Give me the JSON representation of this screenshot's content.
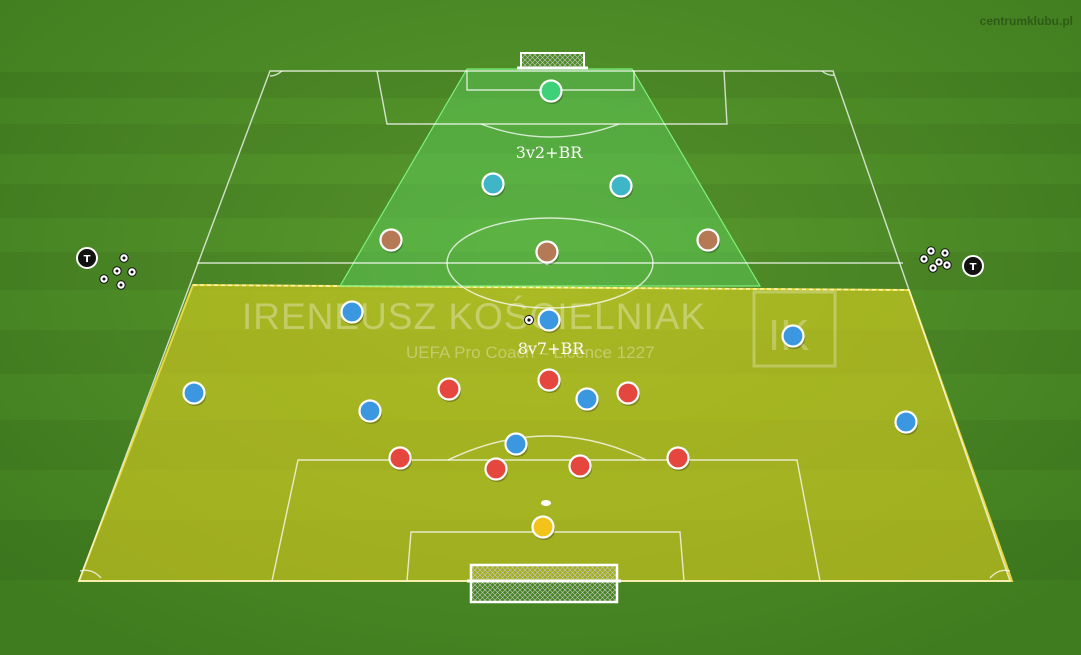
{
  "site": "centrumklubu.pl",
  "watermark": {
    "name": "IRENEUSZ KOŚCIELNIAK",
    "subtitle": "UEFA Pro Coach – Licence 1227",
    "monogram": "IK"
  },
  "zones": {
    "upper": {
      "label": "3v2+BR",
      "color": "#5fd35f"
    },
    "lower": {
      "label": "8v7+BR",
      "color": "#e3d21f"
    }
  },
  "colors": {
    "blue": "#3b97e0",
    "red": "#e5473e",
    "brown": "#b57a55",
    "teal": "#3fb6c8",
    "green_gk": "#3fd07a",
    "yellow_gk": "#f2c41a"
  },
  "players": [
    {
      "team": "green_gk",
      "role": "goalkeeper"
    },
    {
      "team": "teal",
      "role": "player"
    },
    {
      "team": "teal",
      "role": "player"
    },
    {
      "team": "brown",
      "role": "player"
    },
    {
      "team": "brown",
      "role": "player"
    },
    {
      "team": "brown",
      "role": "player"
    },
    {
      "team": "blue",
      "role": "player"
    },
    {
      "team": "blue",
      "role": "player"
    },
    {
      "team": "blue",
      "role": "player"
    },
    {
      "team": "blue",
      "role": "player"
    },
    {
      "team": "blue",
      "role": "player"
    },
    {
      "team": "blue",
      "role": "player"
    },
    {
      "team": "blue",
      "role": "player"
    },
    {
      "team": "blue",
      "role": "player"
    },
    {
      "team": "red",
      "role": "player"
    },
    {
      "team": "red",
      "role": "player"
    },
    {
      "team": "red",
      "role": "player"
    },
    {
      "team": "red",
      "role": "player"
    },
    {
      "team": "red",
      "role": "player"
    },
    {
      "team": "red",
      "role": "player"
    },
    {
      "team": "red",
      "role": "player"
    },
    {
      "team": "yellow_gk",
      "role": "goalkeeper"
    }
  ],
  "trainers": [
    {
      "label": "T",
      "side": "left"
    },
    {
      "label": "T",
      "side": "right"
    }
  ]
}
